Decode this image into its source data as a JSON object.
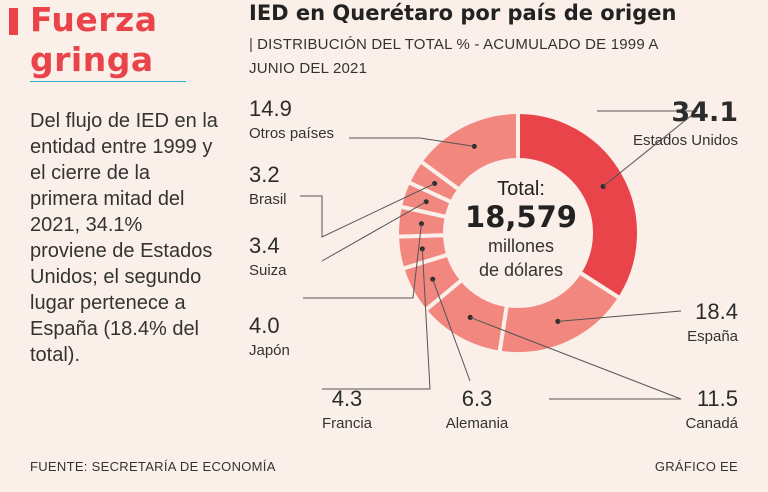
{
  "headline": {
    "line1": "Fuerza",
    "line2": "gringa"
  },
  "intro": "Del flujo de IED en la entidad entre 1999 y el cierre de la primera mitad del 2021, 34.1% proviene de Estados Unidos; el segundo lugar pertenece a España (18.4% del total).",
  "chart_data": {
    "type": "pie",
    "title": "IED en Querétaro por país de origen",
    "subtitle_sep": "|",
    "subtitle": "DISTRIBUCIÓN DEL TOTAL % - ACUMULADO DE 1999 A JUNIO DEL 2021",
    "center": {
      "label": "Total:",
      "value": "18,579",
      "unit_line1": "millones",
      "unit_line2": "de dólares"
    },
    "slices": [
      {
        "label": "Estados Unidos",
        "value": 34.1,
        "display": "34.1",
        "color": "#e8444a"
      },
      {
        "label": "España",
        "value": 18.4,
        "display": "18.4",
        "color": "#f1877f"
      },
      {
        "label": "Canadá",
        "value": 11.5,
        "display": "11.5",
        "color": "#f1877f"
      },
      {
        "label": "Alemania",
        "value": 6.3,
        "display": "6.3",
        "color": "#f1877f"
      },
      {
        "label": "Francia",
        "value": 4.3,
        "display": "4.3",
        "color": "#f1877f"
      },
      {
        "label": "Japón",
        "value": 4.0,
        "display": "4.0",
        "color": "#f1877f"
      },
      {
        "label": "Suiza",
        "value": 3.4,
        "display": "3.4",
        "color": "#f1877f"
      },
      {
        "label": "Brasil",
        "value": 3.2,
        "display": "3.2",
        "color": "#f1877f"
      },
      {
        "label": "Otros países",
        "value": 14.9,
        "display": "14.9",
        "color": "#f1877f"
      }
    ]
  },
  "footer": {
    "source": "FUENTE: SECRETARÍA DE ECONOMÍA",
    "credit": "GRÁFICO EE"
  }
}
